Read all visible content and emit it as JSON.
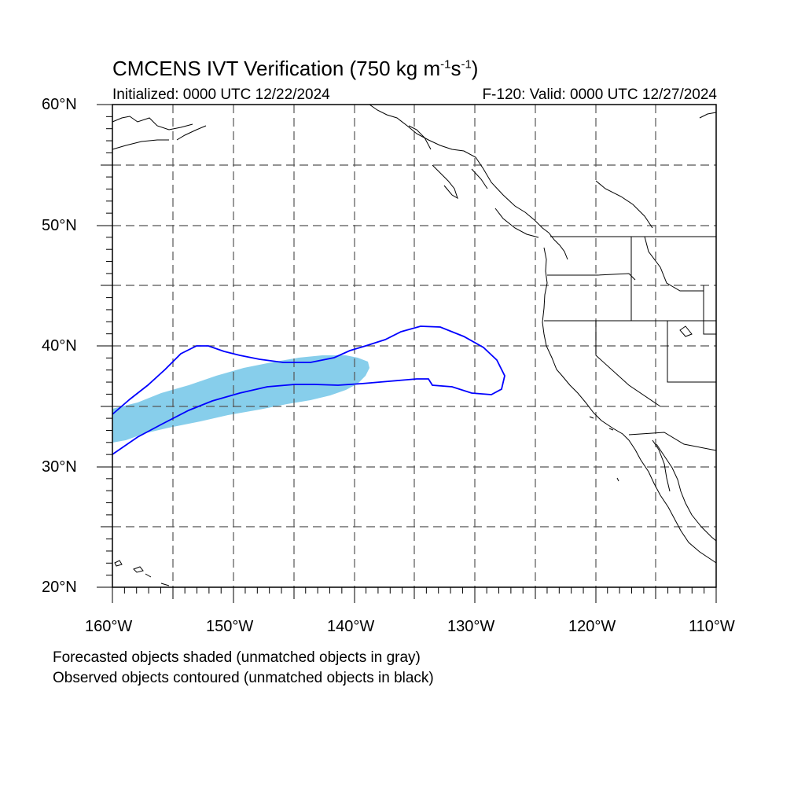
{
  "title": {
    "prefix": "CMCENS IVT Verification (750 kg m",
    "exp1": "-1",
    "mid": "s",
    "exp2": "-1",
    "suffix": ")"
  },
  "initialized": "Initialized: 0000 UTC 12/22/2024",
  "valid": "F-120: Valid: 0000 UTC 12/27/2024",
  "map": {
    "lon_range": [
      -160,
      -110
    ],
    "lat_range": [
      20,
      60
    ],
    "lat_labels": [
      "60°N",
      "50°N",
      "40°N",
      "30°N",
      "20°N"
    ],
    "lon_labels": [
      "160°W",
      "150°W",
      "140°W",
      "130°W",
      "120°W",
      "110°W"
    ],
    "gridlines": "dashed every 5°",
    "colors": {
      "forecast_fill": "#87ceeb",
      "observed_contour": "#0000ff",
      "coastline": "#000000"
    }
  },
  "legend": {
    "forecast": "Forecasted objects shaded (unmatched objects in gray)",
    "observed": "Observed objects contoured (unmatched objects in black)"
  }
}
